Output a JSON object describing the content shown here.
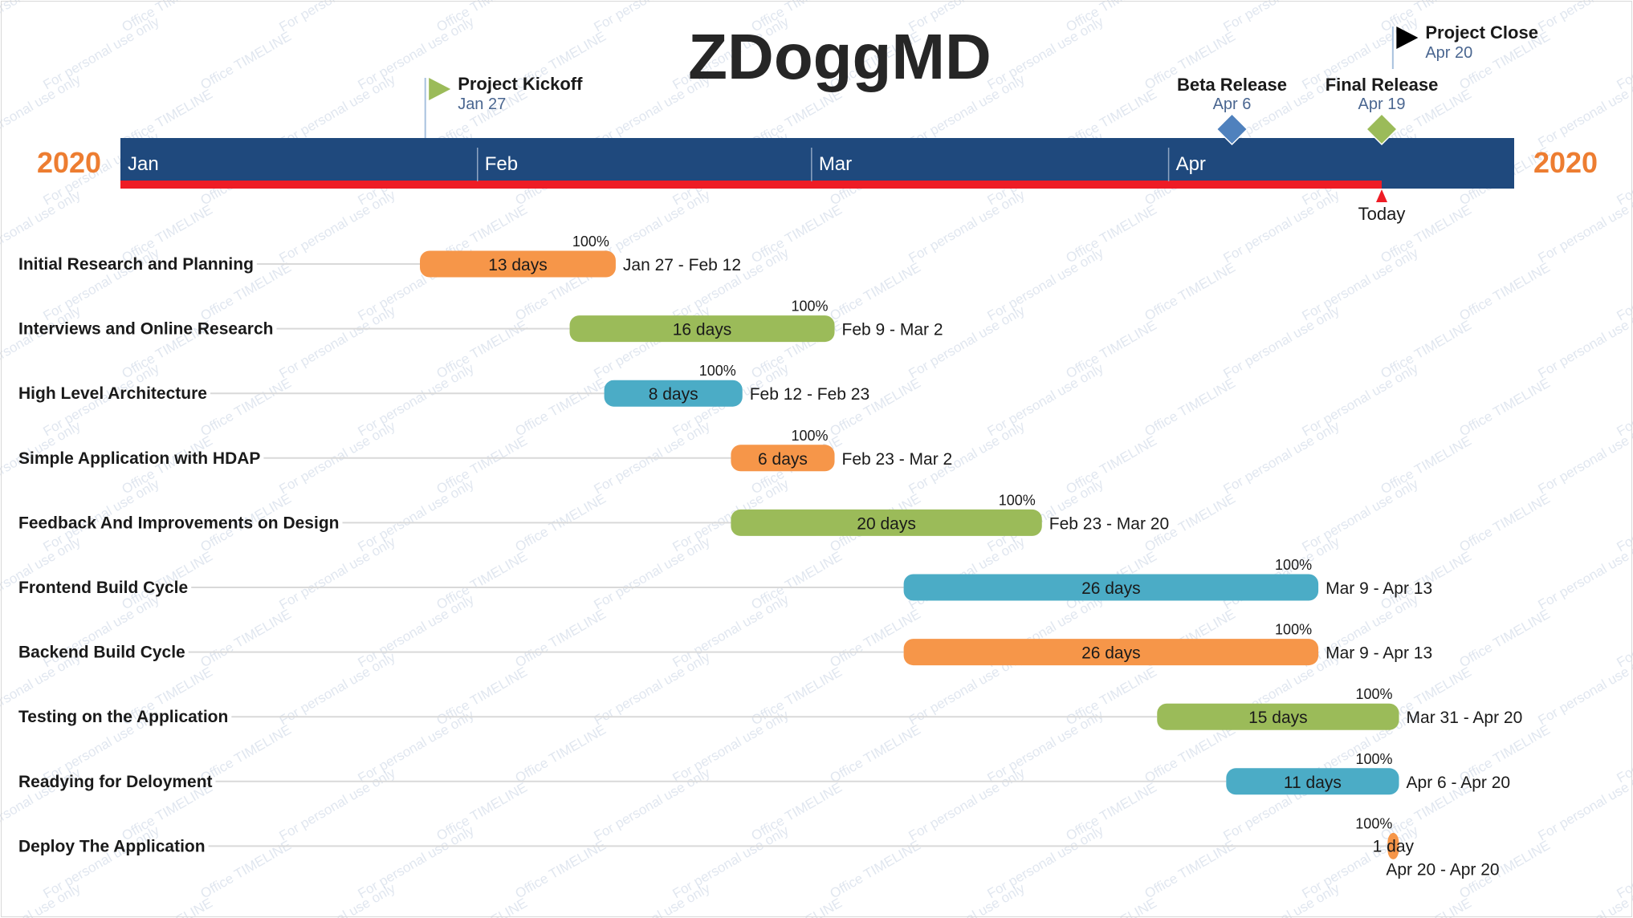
{
  "title": "ZDoggMD",
  "year_label": "2020",
  "today_label": "Today",
  "colors": {
    "scale_band": "#1f497d",
    "today_line": "#ee1c25",
    "orange": "#f69649",
    "green": "#9bbb59",
    "blue": "#4bacc6",
    "milestone_blue": "#4f81bd",
    "year": "#ed7d31",
    "title": "#262626",
    "watermark": "#c8d3e3"
  },
  "watermark_texts": [
    "For personal use only",
    "Office TIMELINE"
  ],
  "chart_data": {
    "type": "gantt",
    "time_range": [
      "2020-01-01",
      "2020-04-30"
    ],
    "months": [
      "Jan",
      "Feb",
      "Mar",
      "Apr"
    ],
    "today": "2020-04-19",
    "milestones": [
      {
        "name": "Project Kickoff",
        "date_label": "Jan 27",
        "date": "2020-01-27",
        "shape": "flag",
        "color": "green",
        "placement": "below-title"
      },
      {
        "name": "Project Close",
        "date_label": "Apr 20",
        "date": "2020-04-20",
        "shape": "flag",
        "color": "black",
        "placement": "top"
      },
      {
        "name": "Beta Release",
        "date_label": "Apr 6",
        "date": "2020-04-06",
        "shape": "diamond",
        "color": "milestone_blue",
        "placement": "on-scale"
      },
      {
        "name": "Final Release",
        "date_label": "Apr 19",
        "date": "2020-04-19",
        "shape": "diamond",
        "color": "green",
        "placement": "on-scale"
      }
    ],
    "tasks": [
      {
        "name": "Initial Research and Planning",
        "start": "2020-01-27",
        "end": "2020-02-12",
        "duration_label": "13 days",
        "percent_label": "100%",
        "date_label": "Jan 27 - Feb 12",
        "color": "orange"
      },
      {
        "name": "Interviews and Online Research",
        "start": "2020-02-09",
        "end": "2020-03-02",
        "duration_label": "16 days",
        "percent_label": "100%",
        "date_label": "Feb 9 - Mar 2",
        "color": "green"
      },
      {
        "name": "High Level Architecture",
        "start": "2020-02-12",
        "end": "2020-02-23",
        "duration_label": "8 days",
        "percent_label": "100%",
        "date_label": "Feb 12 - Feb 23",
        "color": "blue"
      },
      {
        "name": "Simple Application with HDAP",
        "start": "2020-02-23",
        "end": "2020-03-02",
        "duration_label": "6 days",
        "percent_label": "100%",
        "date_label": "Feb 23 - Mar 2",
        "color": "orange"
      },
      {
        "name": "Feedback And Improvements on Design",
        "start": "2020-02-23",
        "end": "2020-03-20",
        "duration_label": "20 days",
        "percent_label": "100%",
        "date_label": "Feb 23 - Mar 20",
        "color": "green"
      },
      {
        "name": "Frontend Build Cycle",
        "start": "2020-03-09",
        "end": "2020-04-13",
        "duration_label": "26 days",
        "percent_label": "100%",
        "date_label": "Mar 9 - Apr 13",
        "color": "blue"
      },
      {
        "name": "Backend Build Cycle",
        "start": "2020-03-09",
        "end": "2020-04-13",
        "duration_label": "26 days",
        "percent_label": "100%",
        "date_label": "Mar 9 - Apr 13",
        "color": "orange"
      },
      {
        "name": "Testing on the Application",
        "start": "2020-03-31",
        "end": "2020-04-20",
        "duration_label": "15 days",
        "percent_label": "100%",
        "date_label": "Mar 31 - Apr 20",
        "color": "green"
      },
      {
        "name": "Readying for Deloyment",
        "start": "2020-04-06",
        "end": "2020-04-20",
        "duration_label": "11 days",
        "percent_label": "100%",
        "date_label": "Apr 6 - Apr 20",
        "color": "blue"
      },
      {
        "name": "Deploy The Application",
        "start": "2020-04-20",
        "end": "2020-04-20",
        "duration_label": "1 day",
        "percent_label": "100%",
        "date_label": "Apr 20 - Apr 20",
        "color": "orange"
      }
    ]
  }
}
